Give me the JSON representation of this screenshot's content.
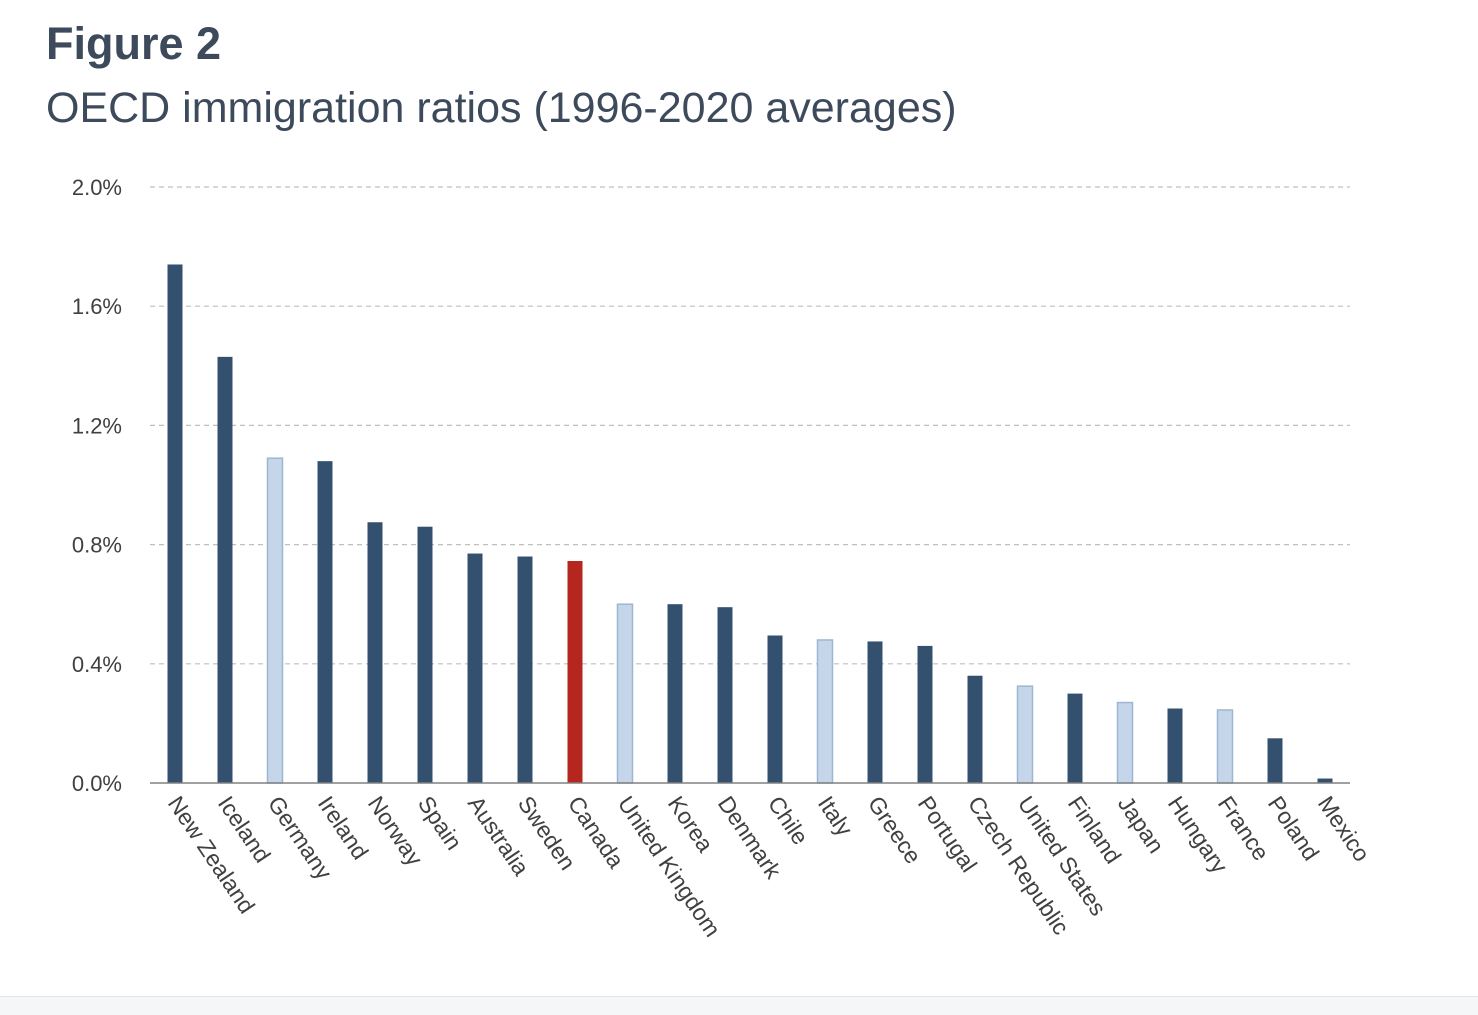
{
  "figure": {
    "label": "Figure 2",
    "title": "OECD immigration ratios (1996-2020 averages)"
  },
  "colors": {
    "dark": "#34506f",
    "light": "#c5d6ea",
    "light_stroke": "#9db6d2",
    "highlight": "#b5261e",
    "grid": "#bfbfbf",
    "axis": "#808080"
  },
  "chart_data": {
    "type": "bar",
    "title": "",
    "xlabel": "",
    "ylabel": "",
    "ylim": [
      0,
      2.0
    ],
    "y_unit": "%",
    "yticks": [
      "0.0%",
      "0.4%",
      "0.8%",
      "1.2%",
      "1.6%",
      "2.0%"
    ],
    "grid": true,
    "categories": [
      "New Zealand",
      "Iceland",
      "Germany",
      "Ireland",
      "Norway",
      "Spain",
      "Australia",
      "Sweden",
      "Canada",
      "United Kingdom",
      "Korea",
      "Denmark",
      "Chile",
      "Italy",
      "Greece",
      "Portugal",
      "Czech Republic",
      "United States",
      "Finland",
      "Japan",
      "Hungary",
      "France",
      "Poland",
      "Mexico"
    ],
    "values": [
      1.74,
      1.43,
      1.09,
      1.08,
      0.875,
      0.86,
      0.77,
      0.76,
      0.745,
      0.6,
      0.6,
      0.59,
      0.495,
      0.48,
      0.475,
      0.46,
      0.36,
      0.325,
      0.3,
      0.27,
      0.25,
      0.245,
      0.15,
      0.015
    ],
    "bar_styles": [
      "dark",
      "dark",
      "light",
      "dark",
      "dark",
      "dark",
      "dark",
      "dark",
      "highlight",
      "light",
      "dark",
      "dark",
      "dark",
      "light",
      "dark",
      "dark",
      "dark",
      "light",
      "dark",
      "light",
      "dark",
      "light",
      "dark",
      "dark"
    ]
  }
}
